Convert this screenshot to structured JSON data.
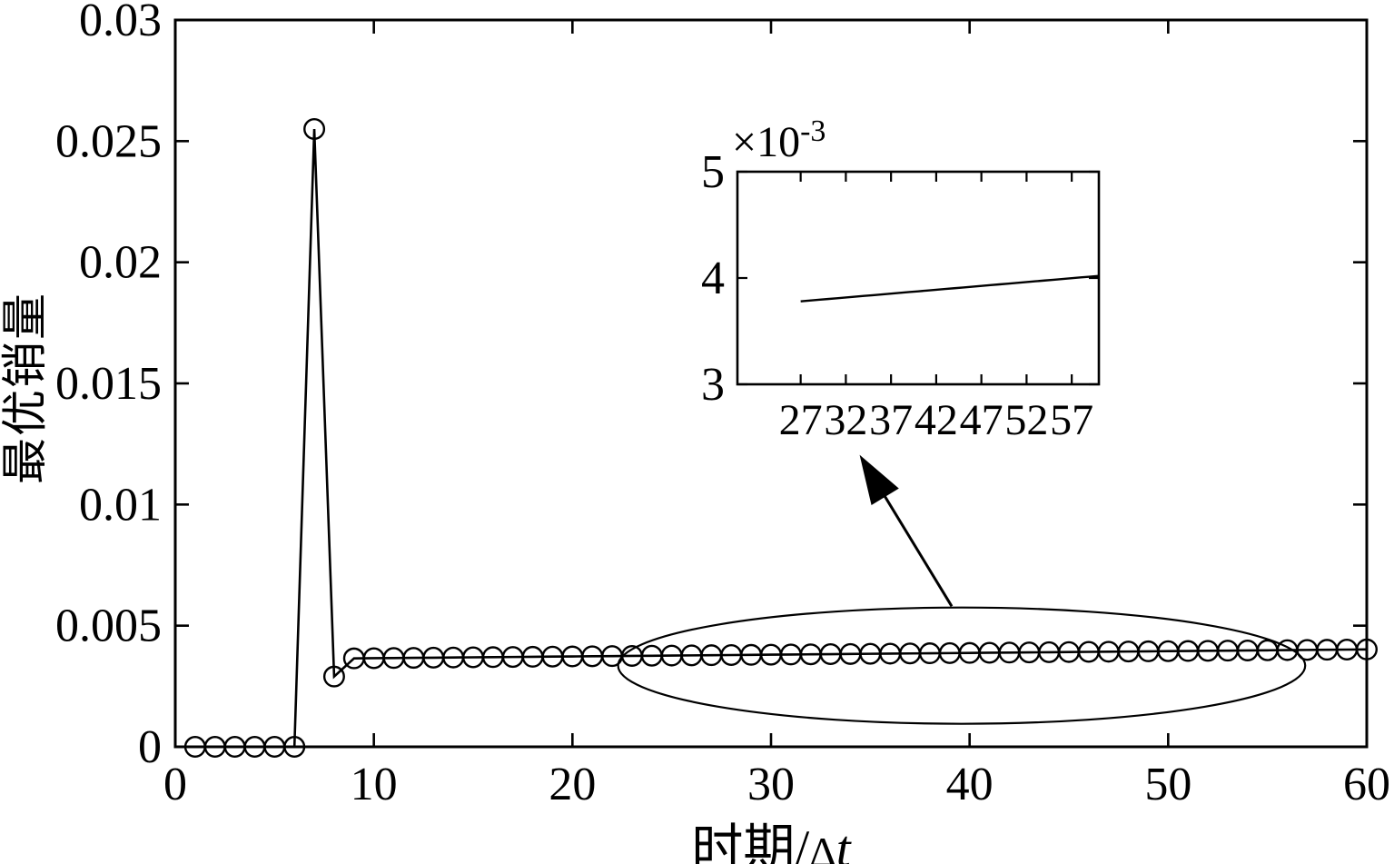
{
  "figure": {
    "background": "#ffffff",
    "line_color": "#000000"
  },
  "axis_labels": {
    "xlabel_main": "时期/",
    "xlabel_delta": "Δ",
    "xlabel_italic": "t",
    "ylabel": "最优销量"
  },
  "inset_header": {
    "multiplier_base": "×10",
    "multiplier_exp": "-3"
  },
  "chart_data": {
    "type": "line",
    "title": "",
    "xlabel": "时期/Δt",
    "ylabel": "最优销量",
    "grid": false,
    "legend": null,
    "marker": "circle",
    "xlim": [
      0,
      60
    ],
    "ylim": [
      0,
      0.03
    ],
    "xticks": [
      0,
      10,
      20,
      30,
      40,
      50,
      60
    ],
    "xtick_labels": [
      "0",
      "10",
      "20",
      "30",
      "40",
      "50",
      "60"
    ],
    "yticks": [
      0,
      0.005,
      0.01,
      0.015,
      0.02,
      0.025,
      0.03
    ],
    "ytick_labels": [
      "0",
      "0.005",
      "0.01",
      "0.015",
      "0.02",
      "0.025",
      "0.03"
    ],
    "series": [
      {
        "name": "最优销量",
        "x": [
          1,
          2,
          3,
          4,
          5,
          6,
          7,
          8,
          9,
          10,
          11,
          12,
          13,
          14,
          15,
          16,
          17,
          18,
          19,
          20,
          21,
          22,
          23,
          24,
          25,
          26,
          27,
          28,
          29,
          30,
          31,
          32,
          33,
          34,
          35,
          36,
          37,
          38,
          39,
          40,
          41,
          42,
          43,
          44,
          45,
          46,
          47,
          48,
          49,
          50,
          51,
          52,
          53,
          54,
          55,
          56,
          57,
          58,
          59,
          60
        ],
        "y": [
          0,
          0,
          0,
          0,
          0,
          0,
          0.0255,
          0.0029,
          0.00365,
          0.0036573,
          0.0036645,
          0.0036718,
          0.003679,
          0.0036863,
          0.0036935,
          0.0037008,
          0.003708,
          0.0037153,
          0.0037225,
          0.0037298,
          0.003737,
          0.0037443,
          0.0037516,
          0.0037588,
          0.0037661,
          0.0037733,
          0.0037806,
          0.0037878,
          0.0037951,
          0.0038023,
          0.0038096,
          0.0038168,
          0.0038241,
          0.0038314,
          0.0038386,
          0.0038459,
          0.0038531,
          0.0038604,
          0.0038676,
          0.0038749,
          0.0038821,
          0.0038894,
          0.0038966,
          0.0039039,
          0.0039112,
          0.0039184,
          0.0039257,
          0.0039329,
          0.0039402,
          0.0039474,
          0.0039547,
          0.0039619,
          0.0039692,
          0.0039765,
          0.0039837,
          0.003991,
          0.0039982,
          0.0040055,
          0.0040127,
          0.00402
        ]
      }
    ],
    "inset": {
      "description": "zoomed view of flat region",
      "multiplier": "×10⁻³",
      "xlim": [
        20,
        60
      ],
      "ylim": [
        0.003,
        0.005
      ],
      "xticks": [
        27,
        32,
        37,
        42,
        47,
        52,
        57
      ],
      "xtick_labels": [
        "27",
        "32",
        "37",
        "42",
        "47",
        "52",
        "57"
      ],
      "yticks": [
        0.003,
        0.004,
        0.005
      ],
      "ytick_labels": [
        "3",
        "4",
        "5"
      ],
      "line_x_range": [
        27,
        60
      ]
    },
    "annotations": {
      "ellipse": {
        "cx": 39.6,
        "cy": 0.00335,
        "rx": 17.3,
        "ry": 0.0024
      },
      "arrow": {
        "from_x": 39.1,
        "from_y": 0.0058,
        "to_x": 34.5,
        "to_y": 0.012
      }
    }
  }
}
